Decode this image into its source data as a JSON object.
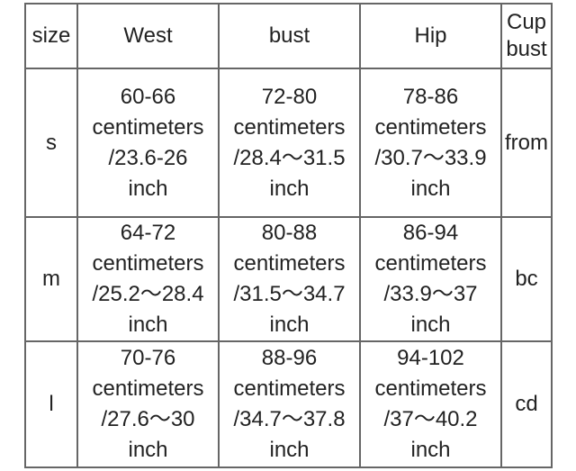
{
  "table": {
    "header": [
      [
        "size"
      ],
      [
        "West"
      ],
      [
        "bust"
      ],
      [
        "Hip"
      ],
      [
        "Cup",
        "bust"
      ]
    ],
    "rows": [
      [
        [
          "s"
        ],
        [
          "60-66",
          "centimeters",
          "/23.6-26",
          "inch"
        ],
        [
          "72-80",
          "centimeters",
          "/28.4～31.5",
          "inch"
        ],
        [
          "78-86",
          "centimeters",
          "/30.7～33.9",
          "inch"
        ],
        [
          "from"
        ]
      ],
      [
        [
          "m"
        ],
        [
          "64-72",
          "centimeters",
          "/25.2～28.4",
          "inch"
        ],
        [
          "80-88",
          "centimeters",
          "/31.5～34.7",
          "inch"
        ],
        [
          "86-94",
          "centimeters",
          "/33.9～37",
          "inch"
        ],
        [
          "bc"
        ]
      ],
      [
        [
          "l"
        ],
        [
          "70-76",
          "centimeters",
          "/27.6～30",
          "inch"
        ],
        [
          "88-96",
          "centimeters",
          "/34.7～37.8",
          "inch"
        ],
        [
          "94-102",
          "centimeters",
          "/37～40.2",
          "inch"
        ],
        [
          "cd"
        ]
      ]
    ]
  }
}
